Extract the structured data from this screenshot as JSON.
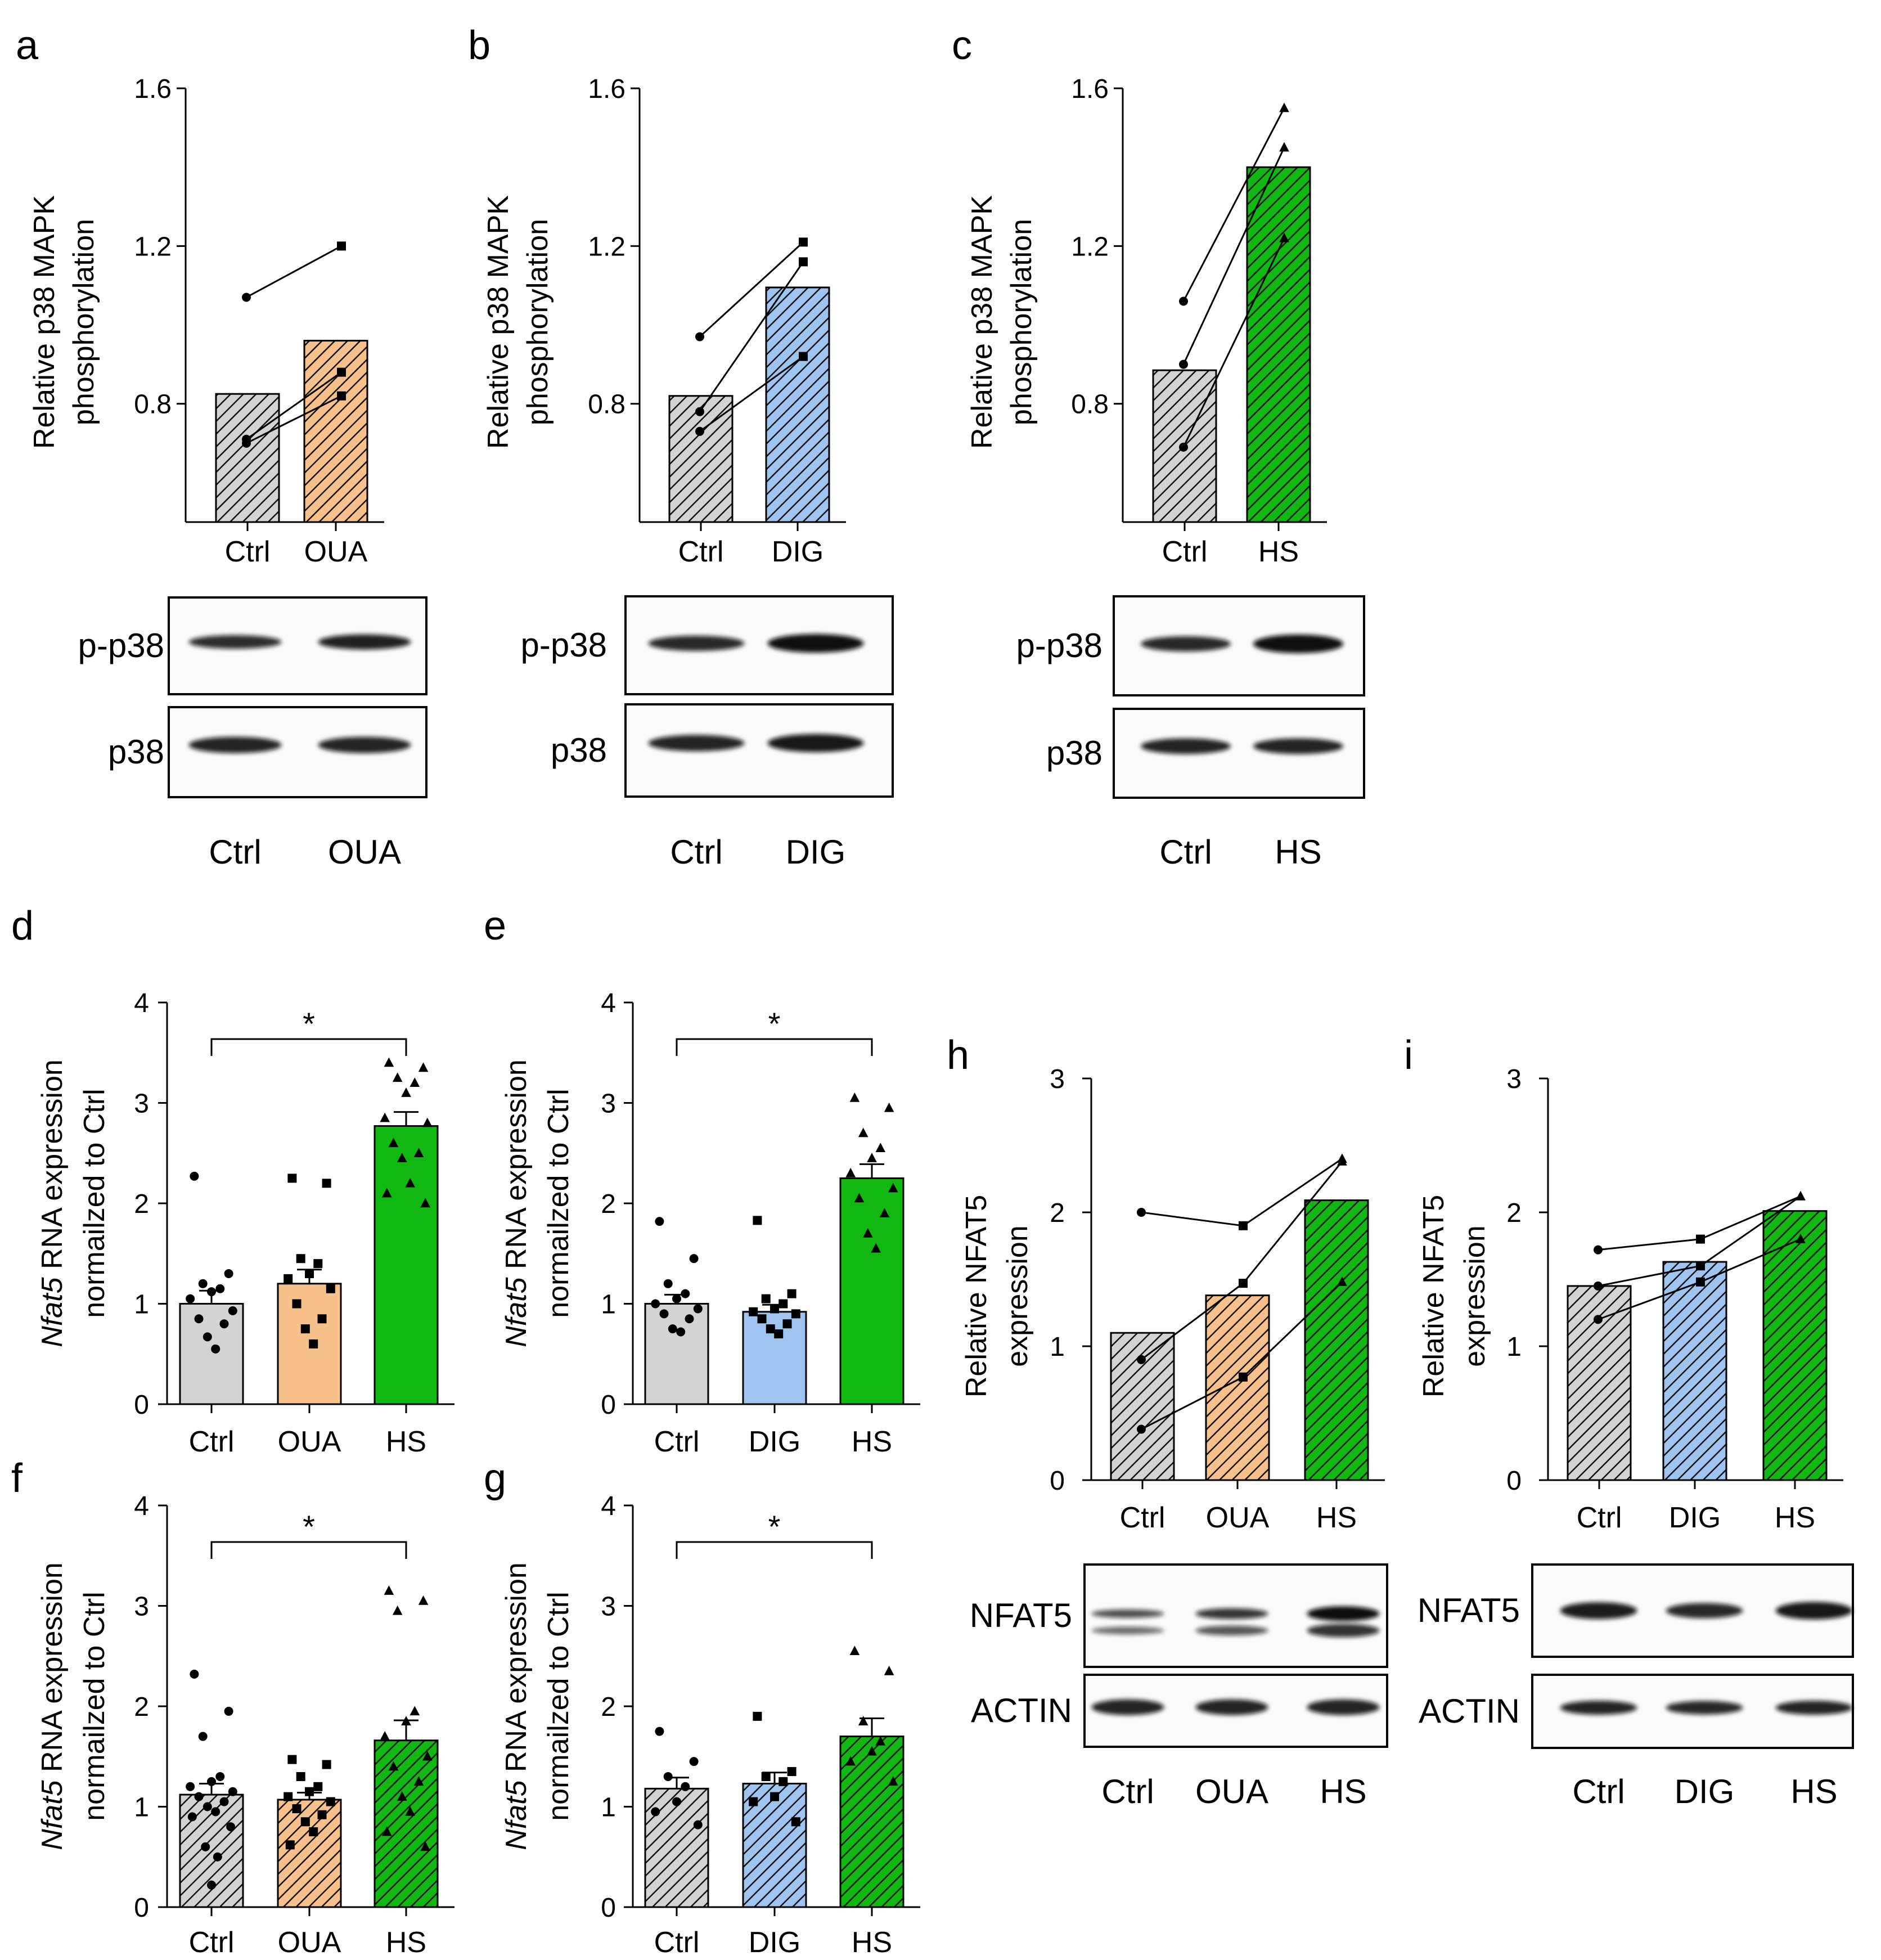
{
  "colors": {
    "ctrl": "#d3d3d3",
    "oua": "#f8c08a",
    "dig": "#a0c4f0",
    "hs": "#11b811",
    "axis": "#000000"
  },
  "chart_data": [
    {
      "panel": "a",
      "type": "bar",
      "paired": true,
      "categories": [
        "Ctrl",
        "OUA"
      ],
      "colors": [
        "ctrl",
        "oua"
      ],
      "hatched": true,
      "values": [
        0.825,
        0.96
      ],
      "ylim": [
        0.5,
        1.6
      ],
      "yticks": [
        0.8,
        1.2,
        1.6
      ],
      "ylabel": [
        "Relative p38 MAPK",
        "phosphorylation"
      ],
      "pairs": [
        [
          1.07,
          1.2
        ],
        [
          0.71,
          0.88
        ],
        [
          0.7,
          0.82
        ]
      ],
      "markers": [
        "circle",
        "square"
      ],
      "blot": {
        "rows": [
          "p-p38",
          "p38"
        ],
        "lanes": [
          "Ctrl",
          "OUA"
        ]
      }
    },
    {
      "panel": "b",
      "type": "bar",
      "paired": true,
      "categories": [
        "Ctrl",
        "DIG"
      ],
      "colors": [
        "ctrl",
        "dig"
      ],
      "hatched": true,
      "values": [
        0.82,
        1.095
      ],
      "ylim": [
        0.5,
        1.6
      ],
      "yticks": [
        0.8,
        1.2,
        1.6
      ],
      "ylabel": [
        "Relative p38 MAPK",
        "phosphorylation"
      ],
      "pairs": [
        [
          0.97,
          1.21
        ],
        [
          0.78,
          1.16
        ],
        [
          0.73,
          0.92
        ]
      ],
      "markers": [
        "circle",
        "square"
      ],
      "blot": {
        "rows": [
          "p-p38",
          "p38"
        ],
        "lanes": [
          "Ctrl",
          "DIG"
        ]
      }
    },
    {
      "panel": "c",
      "type": "bar",
      "paired": true,
      "categories": [
        "Ctrl",
        "HS"
      ],
      "colors": [
        "ctrl",
        "hs"
      ],
      "hatched": true,
      "values": [
        0.885,
        1.4
      ],
      "ylim": [
        0.5,
        1.6
      ],
      "yticks": [
        0.8,
        1.2,
        1.6
      ],
      "ylabel": [
        "Relative p38 MAPK",
        "phosphorylation"
      ],
      "pairs": [
        [
          1.06,
          1.55
        ],
        [
          0.9,
          1.45
        ],
        [
          0.69,
          1.22
        ]
      ],
      "markers": [
        "circle",
        "triangle"
      ],
      "blot": {
        "rows": [
          "p-p38",
          "p38"
        ],
        "lanes": [
          "Ctrl",
          "HS"
        ]
      }
    },
    {
      "panel": "d",
      "type": "bar",
      "categories": [
        "Ctrl",
        "OUA",
        "HS"
      ],
      "colors": [
        "ctrl",
        "oua",
        "hs"
      ],
      "hatched": false,
      "values": [
        1.0,
        1.2,
        2.77
      ],
      "sem": [
        0.13,
        0.14,
        0.14
      ],
      "ylim": [
        0,
        4
      ],
      "yticks": [
        0,
        1,
        2,
        3,
        4
      ],
      "ylabel_italic": "Nfat5",
      "ylabel_rest": " RNA expression",
      "ylabel_line2": "normailzed to Ctrl",
      "points": [
        [
          2.27,
          1.3,
          1.2,
          1.15,
          1.12,
          1.05,
          0.93,
          0.85,
          0.8,
          0.67,
          0.55
        ],
        [
          2.25,
          2.2,
          1.45,
          1.4,
          1.3,
          1.25,
          1.15,
          1.0,
          0.85,
          0.75,
          0.6
        ],
        [
          3.4,
          3.35,
          3.25,
          3.2,
          3.1,
          2.85,
          2.8,
          2.6,
          2.5,
          2.45,
          2.2,
          2.1,
          2.0
        ]
      ],
      "markers": [
        "circle",
        "square",
        "triangle"
      ],
      "sig": {
        "from": 0,
        "to": 2,
        "label": "*"
      }
    },
    {
      "panel": "e",
      "type": "bar",
      "categories": [
        "Ctrl",
        "DIG",
        "HS"
      ],
      "colors": [
        "ctrl",
        "dig",
        "hs"
      ],
      "hatched": false,
      "values": [
        1.0,
        0.92,
        2.25
      ],
      "sem": [
        0.09,
        0.07,
        0.14
      ],
      "ylim": [
        0,
        4
      ],
      "yticks": [
        0,
        1,
        2,
        3,
        4
      ],
      "ylabel_italic": "Nfat5",
      "ylabel_rest": " RNA expression",
      "ylabel_line2": "normailzed to Ctrl",
      "points": [
        [
          1.82,
          1.45,
          1.2,
          1.1,
          1.05,
          1.0,
          0.95,
          0.9,
          0.85,
          0.75,
          0.72
        ],
        [
          1.83,
          1.1,
          1.05,
          1.0,
          0.95,
          0.92,
          0.9,
          0.85,
          0.8,
          0.75,
          0.7
        ],
        [
          3.05,
          2.95,
          2.7,
          2.55,
          2.45,
          2.3,
          2.15,
          2.05,
          1.9,
          1.7,
          1.55
        ]
      ],
      "markers": [
        "circle",
        "square",
        "triangle"
      ],
      "sig": {
        "from": 0,
        "to": 2,
        "label": "*"
      }
    },
    {
      "panel": "f",
      "type": "bar",
      "categories": [
        "Ctrl",
        "OUA",
        "HS"
      ],
      "colors": [
        "ctrl",
        "oua",
        "hs"
      ],
      "hatched": true,
      "values": [
        1.12,
        1.07,
        1.66
      ],
      "sem": [
        0.11,
        0.07,
        0.2
      ],
      "ylim": [
        0,
        4
      ],
      "yticks": [
        0,
        1,
        2,
        3,
        4
      ],
      "ylabel_italic": "Nfat5",
      "ylabel_rest": " RNA expression",
      "ylabel_line2": "normailzed to Ctrl",
      "points": [
        [
          2.32,
          1.95,
          1.7,
          1.3,
          1.25,
          1.2,
          1.15,
          1.1,
          1.05,
          1.0,
          0.95,
          0.9,
          0.8,
          0.6,
          0.5,
          0.22
        ],
        [
          1.47,
          1.42,
          1.3,
          1.2,
          1.15,
          1.1,
          1.05,
          0.98,
          0.92,
          0.85,
          0.75,
          0.62
        ],
        [
          3.15,
          3.05,
          2.95,
          1.95,
          1.85,
          1.7,
          1.5,
          1.4,
          1.25,
          1.1,
          0.95,
          0.75,
          0.6
        ]
      ],
      "markers": [
        "circle",
        "square",
        "triangle"
      ],
      "sig": {
        "from": 0,
        "to": 2,
        "label": "*"
      }
    },
    {
      "panel": "g",
      "type": "bar",
      "categories": [
        "Ctrl",
        "DIG",
        "HS"
      ],
      "colors": [
        "ctrl",
        "dig",
        "hs"
      ],
      "hatched": true,
      "values": [
        1.18,
        1.23,
        1.7
      ],
      "sem": [
        0.11,
        0.11,
        0.18
      ],
      "ylim": [
        0,
        4
      ],
      "yticks": [
        0,
        1,
        2,
        3,
        4
      ],
      "ylabel_italic": "Nfat5",
      "ylabel_rest": " RNA expression",
      "ylabel_line2": "normailzed to Ctrl",
      "points": [
        [
          1.75,
          1.45,
          1.3,
          1.2,
          1.05,
          0.95,
          0.82
        ],
        [
          1.9,
          1.35,
          1.3,
          1.25,
          1.1,
          1.05,
          0.85
        ],
        [
          2.55,
          2.35,
          1.85,
          1.65,
          1.55,
          1.45,
          1.25
        ]
      ],
      "markers": [
        "circle",
        "square",
        "triangle"
      ],
      "sig": {
        "from": 0,
        "to": 2,
        "label": "*"
      }
    },
    {
      "panel": "h",
      "type": "bar",
      "paired": true,
      "categories": [
        "Ctrl",
        "OUA",
        "HS"
      ],
      "colors": [
        "ctrl",
        "oua",
        "hs"
      ],
      "hatched": true,
      "values": [
        1.1,
        1.38,
        2.09
      ],
      "ylim": [
        0,
        3
      ],
      "yticks": [
        0,
        1,
        2,
        3
      ],
      "ylabel": [
        "Relative NFAT5",
        "expression"
      ],
      "pairs": [
        [
          2.0,
          1.9,
          2.4
        ],
        [
          0.9,
          1.47,
          2.38
        ],
        [
          0.38,
          0.77,
          1.48
        ]
      ],
      "markers": [
        "circle",
        "square",
        "triangle"
      ],
      "blot": {
        "rows": [
          "NFAT5",
          "ACTIN"
        ],
        "lanes": [
          "Ctrl",
          "OUA",
          "HS"
        ]
      }
    },
    {
      "panel": "i",
      "type": "bar",
      "paired": true,
      "categories": [
        "Ctrl",
        "DIG",
        "HS"
      ],
      "colors": [
        "ctrl",
        "dig",
        "hs"
      ],
      "hatched": true,
      "values": [
        1.45,
        1.63,
        2.01
      ],
      "ylim": [
        0,
        3
      ],
      "yticks": [
        0,
        1,
        2,
        3
      ],
      "ylabel": [
        "Relative NFAT5",
        "expression"
      ],
      "pairs": [
        [
          1.72,
          1.8,
          2.12
        ],
        [
          1.45,
          1.6,
          2.12
        ],
        [
          1.2,
          1.48,
          1.8
        ]
      ],
      "markers": [
        "circle",
        "square",
        "triangle"
      ],
      "blot": {
        "rows": [
          "NFAT5",
          "ACTIN"
        ],
        "lanes": [
          "Ctrl",
          "DIG",
          "HS"
        ]
      }
    }
  ]
}
